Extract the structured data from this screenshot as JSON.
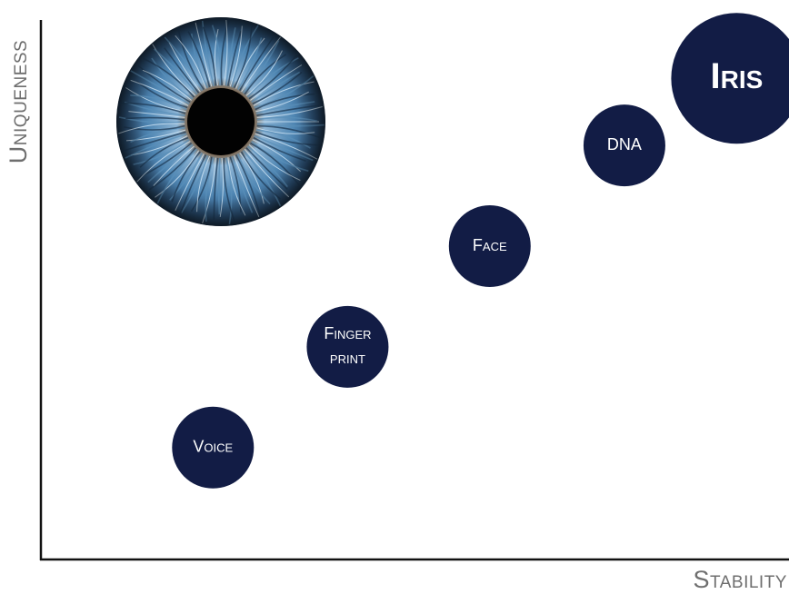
{
  "chart_data": {
    "type": "scatter",
    "xlabel": "Stability",
    "ylabel": "Uniqueness",
    "xlim": [
      0,
      10
    ],
    "ylim": [
      0,
      10
    ],
    "grid": false,
    "legend": "none",
    "colors": {
      "bubble": "#121c45",
      "axis": "#111111",
      "label": "#6e6e6e",
      "eye_iris": "#5a8fb8",
      "eye_dark": "#1d3a56"
    },
    "points": [
      {
        "name": "Voice",
        "label_lines": [
          "Voice"
        ],
        "x": 2.3,
        "y": 2.0,
        "size": 1.0
      },
      {
        "name": "Fingerprint",
        "label_lines": [
          "Finger",
          "print"
        ],
        "x": 4.1,
        "y": 3.8,
        "size": 1.0
      },
      {
        "name": "Face",
        "label_lines": [
          "Face"
        ],
        "x": 6.0,
        "y": 5.6,
        "size": 1.0
      },
      {
        "name": "DNA",
        "label_lines": [
          "DNA"
        ],
        "x": 7.8,
        "y": 7.4,
        "size": 1.0
      },
      {
        "name": "Iris",
        "label_lines": [
          "Iris"
        ],
        "x": 9.3,
        "y": 8.6,
        "size": 1.6,
        "emphasis": true
      }
    ],
    "image": {
      "icon": "eye-iris-icon"
    }
  }
}
